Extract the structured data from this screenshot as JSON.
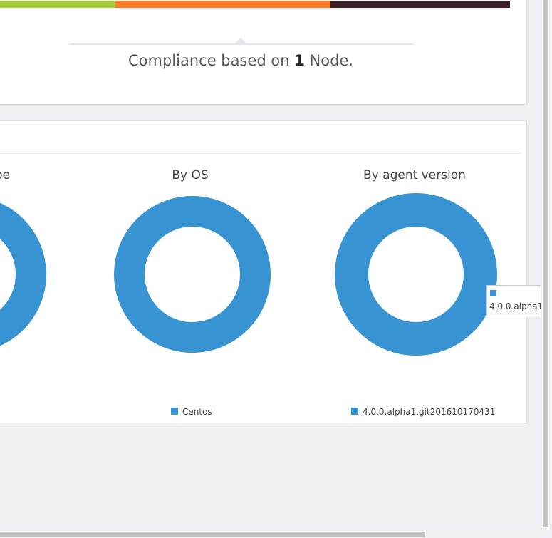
{
  "compliance": {
    "prefix": "Compliance based on",
    "count": "1",
    "suffix": "Node."
  },
  "chart_data": [
    {
      "type": "pie",
      "title": "pe",
      "values": [
        100
      ],
      "color": "#3793d1"
    },
    {
      "type": "pie",
      "title": "By OS",
      "categories": [
        "Centos"
      ],
      "values": [
        100
      ],
      "color": "#3793d1"
    },
    {
      "type": "pie",
      "title": "By agent version",
      "categories": [
        "4.0.0.alpha1.git201610170431"
      ],
      "values": [
        100
      ],
      "color": "#3793d1",
      "tooltip": "4.0.0.alpha1"
    }
  ]
}
